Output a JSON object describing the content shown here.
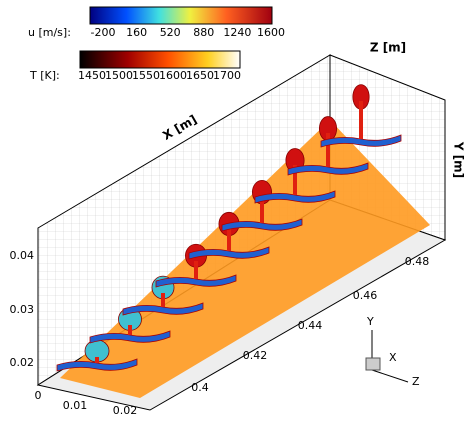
{
  "colorbars": [
    {
      "label": "u [m/s]:",
      "ticks": [
        -200,
        160,
        520,
        880,
        1240,
        1600
      ]
    },
    {
      "label": "T [K]:",
      "ticks": [
        1450,
        1500,
        1550,
        1600,
        1650,
        1700
      ]
    }
  ],
  "axes": {
    "x": {
      "label": "X [m]",
      "ticks": [
        "0",
        "0.01",
        "0.02"
      ]
    },
    "y": {
      "label": "Y [m]",
      "ticks": [
        "0.02",
        "0.03",
        "0.04"
      ]
    },
    "z": {
      "label": "Z [m]",
      "ticks": [
        "0.4",
        "0.42",
        "0.44",
        "0.46",
        "0.48"
      ]
    }
  },
  "triad": [
    "Y",
    "X",
    "Z"
  ]
}
